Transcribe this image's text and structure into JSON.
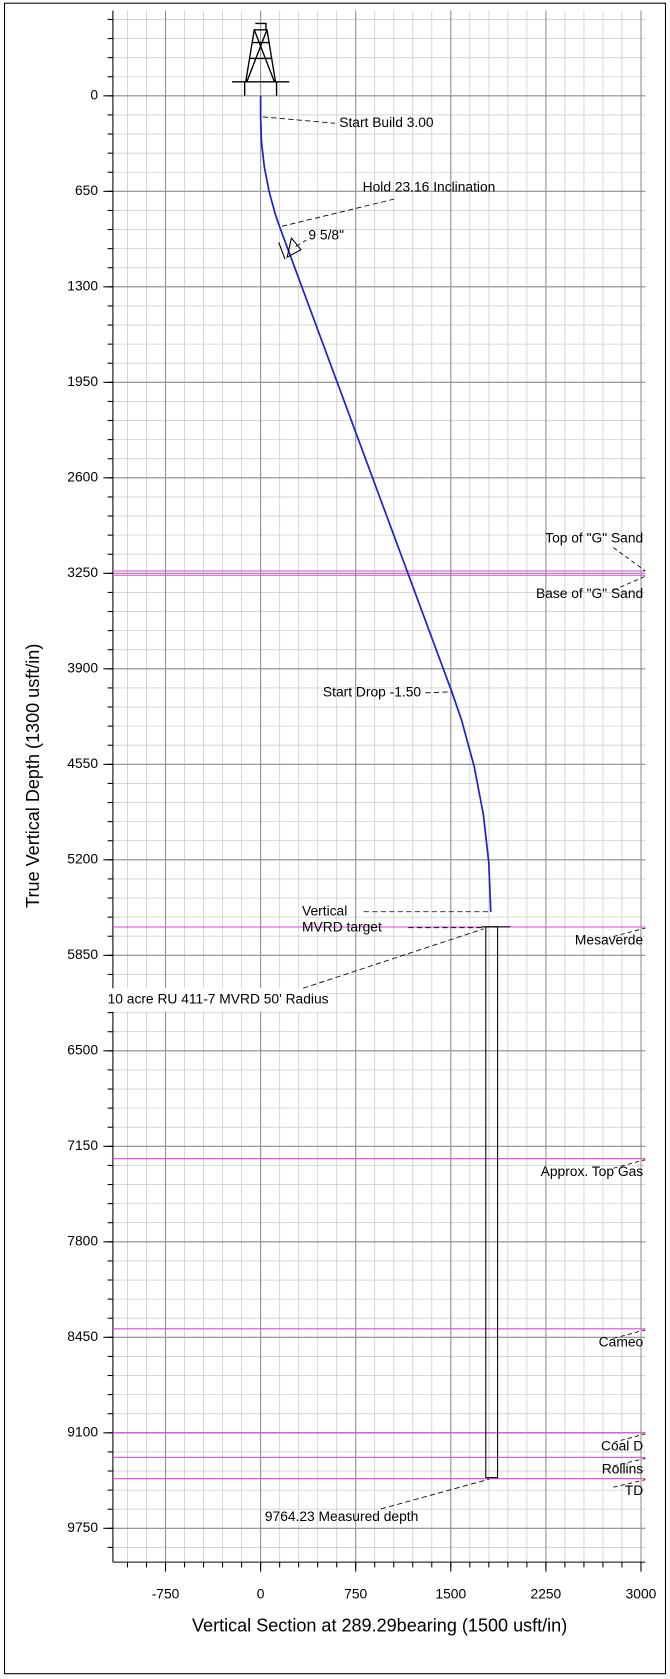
{
  "chart_data": {
    "type": "line",
    "ylabel": "True Vertical Depth (1300 usft/in)",
    "xlabel": "Vertical Section at 289.29bearing (1500 usft/in)",
    "xlim": [
      -1165,
      3034
    ],
    "ylim": [
      -580,
      9980
    ],
    "y_inverted": true,
    "xticks": [
      -750,
      0,
      750,
      1500,
      2250,
      3000
    ],
    "yticks": [
      0,
      650,
      1300,
      1950,
      2600,
      3250,
      3900,
      4550,
      5200,
      5850,
      6500,
      7150,
      7800,
      8450,
      9100,
      9750
    ],
    "xminor": 150,
    "yminor": 130,
    "grid": true,
    "series": [
      {
        "color": "#1f1fd0",
        "x": [
          0,
          0,
          7,
          29,
          65,
          115,
          154,
          1507,
          1585,
          1685,
          1757,
          1800,
          1815
        ],
        "values": [
          0,
          150,
          316,
          482,
          644,
          803,
          901,
          4054,
          4249,
          4567,
          4893,
          5223,
          5556
        ]
      }
    ],
    "target_box": {
      "x": [
        1776,
        1869
      ],
      "y": [
        5656,
        9405
      ]
    },
    "formation_color": "#e040e0",
    "formations": [
      {
        "name": "Top of \"G\" Sand",
        "tvd": 3234
      },
      {
        "name": "Base of \"G\" Sand",
        "tvd": 3263
      },
      {
        "name": "Mesaverde",
        "tvd": 5657
      },
      {
        "name": "Approx. Top Gas",
        "tvd": 7234
      },
      {
        "name": "Cameo",
        "tvd": 8392
      },
      {
        "name": "Coal D",
        "tvd": 9100
      },
      {
        "name": "Rollins",
        "tvd": 9267
      },
      {
        "name": "TD",
        "tvd": 9412
      }
    ],
    "annotations": [
      "Start Build 3.00",
      "Hold 23.16 Inclination",
      "9 5/8\"",
      "Start Drop -1.50",
      "Vertical",
      "MVRD target",
      "10 acre RU 411-7 MVRD 50' Radius",
      "9764.23 Measured depth"
    ]
  }
}
